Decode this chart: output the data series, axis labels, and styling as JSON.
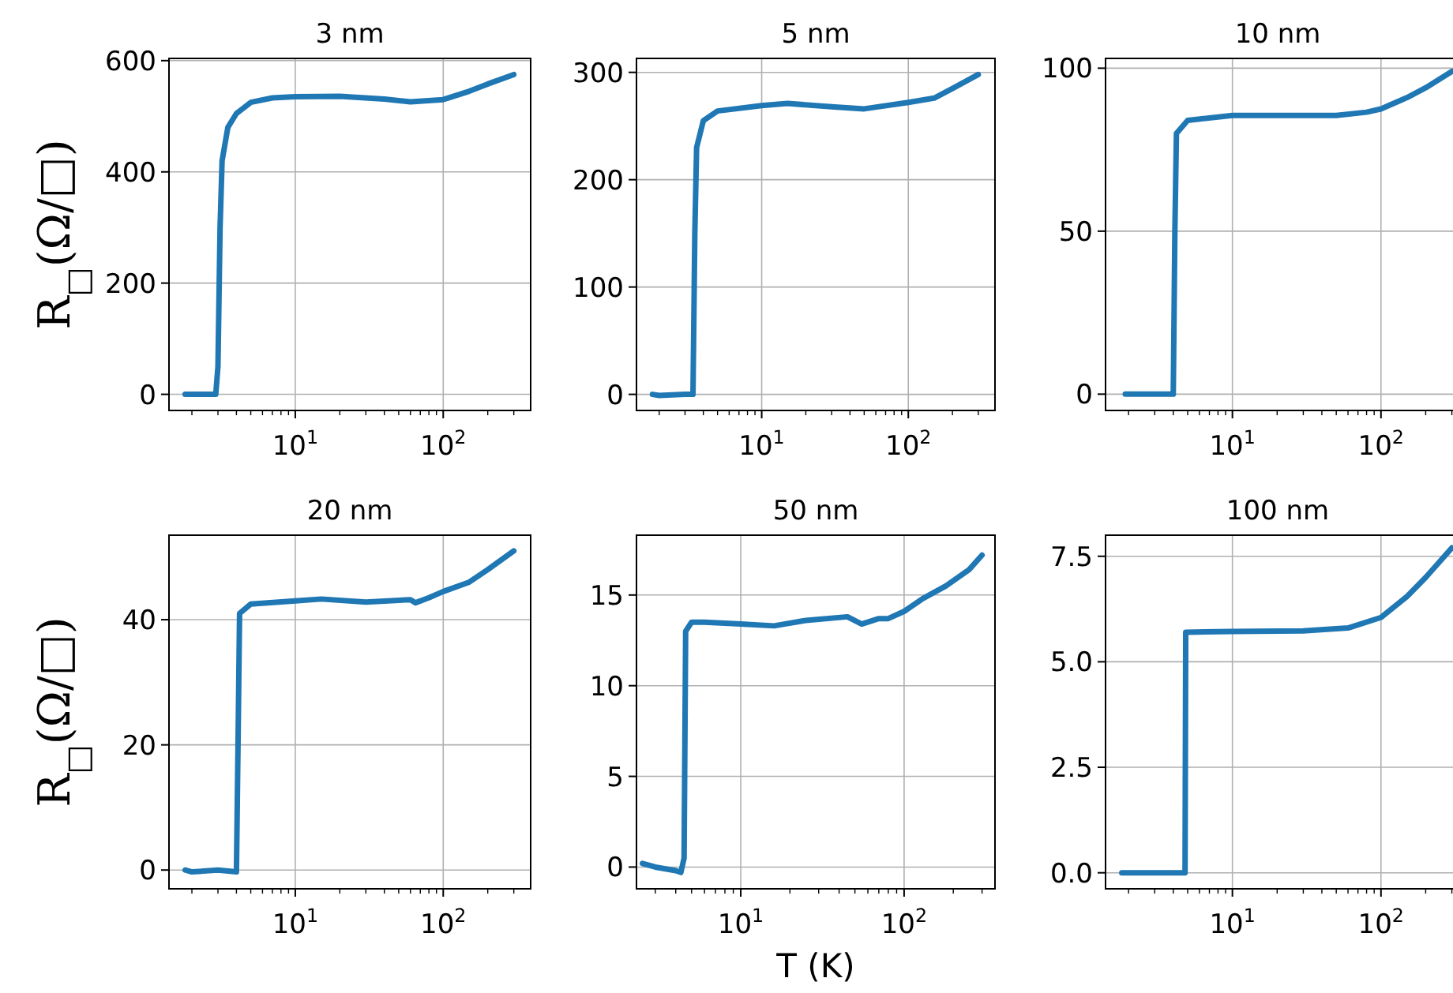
{
  "chart_data": [
    {
      "type": "line",
      "title": "3 nm",
      "ylabel": "R$_{□}$(Ω/□)",
      "log": "x",
      "grid": true,
      "xlim": [
        1.4,
        390
      ],
      "ylim": [
        -29,
        604
      ],
      "yticks": [
        0,
        200,
        400,
        600
      ],
      "xticks": [
        {
          "value": 2,
          "label": null
        },
        {
          "value": 3,
          "label": null
        },
        {
          "value": 4,
          "label": null
        },
        {
          "value": 5,
          "label": null
        },
        {
          "value": 6,
          "label": null
        },
        {
          "value": 7,
          "label": null
        },
        {
          "value": 8,
          "label": null
        },
        {
          "value": 9,
          "label": null
        },
        {
          "value": 10,
          "label": "10$^{1}$"
        },
        {
          "value": 20,
          "label": null
        },
        {
          "value": 30,
          "label": null
        },
        {
          "value": 40,
          "label": null
        },
        {
          "value": 50,
          "label": null
        },
        {
          "value": 60,
          "label": null
        },
        {
          "value": 70,
          "label": null
        },
        {
          "value": 80,
          "label": null
        },
        {
          "value": 90,
          "label": null
        },
        {
          "value": 100,
          "label": "10$^{2}$"
        },
        {
          "value": 200,
          "label": null
        },
        {
          "value": 300,
          "label": null
        }
      ],
      "series": [
        {
          "color": "#1f77b4",
          "x": [
            1.8,
            2.9,
            3.0,
            3.1,
            3.2,
            3.5,
            4,
            5,
            7,
            10,
            20,
            40,
            60,
            100,
            150,
            200,
            300
          ],
          "values": [
            0,
            0,
            50,
            300,
            420,
            480,
            505,
            525,
            533,
            535,
            536,
            531,
            526,
            530,
            545,
            558,
            575
          ]
        }
      ]
    },
    {
      "type": "line",
      "title": "5 nm",
      "log": "x",
      "grid": true,
      "xlim": [
        1.4,
        390
      ],
      "ylim": [
        -15,
        313
      ],
      "yticks": [
        0,
        100,
        200,
        300
      ],
      "xticks": [
        {
          "value": 2,
          "label": null
        },
        {
          "value": 3,
          "label": null
        },
        {
          "value": 4,
          "label": null
        },
        {
          "value": 5,
          "label": null
        },
        {
          "value": 6,
          "label": null
        },
        {
          "value": 7,
          "label": null
        },
        {
          "value": 8,
          "label": null
        },
        {
          "value": 9,
          "label": null
        },
        {
          "value": 10,
          "label": "10$^{1}$"
        },
        {
          "value": 20,
          "label": null
        },
        {
          "value": 30,
          "label": null
        },
        {
          "value": 40,
          "label": null
        },
        {
          "value": 50,
          "label": null
        },
        {
          "value": 60,
          "label": null
        },
        {
          "value": 70,
          "label": null
        },
        {
          "value": 80,
          "label": null
        },
        {
          "value": 90,
          "label": null
        },
        {
          "value": 100,
          "label": "10$^{2}$"
        },
        {
          "value": 200,
          "label": null
        },
        {
          "value": 300,
          "label": null
        }
      ],
      "series": [
        {
          "color": "#1f77b4",
          "x": [
            1.8,
            2,
            3,
            3.4,
            3.5,
            3.6,
            4,
            5,
            10,
            15,
            30,
            50,
            100,
            150,
            200,
            300
          ],
          "values": [
            0,
            -1,
            0,
            0,
            150,
            230,
            255,
            264,
            269,
            271,
            268,
            266,
            272,
            276,
            285,
            298
          ]
        }
      ]
    },
    {
      "type": "line",
      "title": "10 nm",
      "log": "x",
      "grid": true,
      "xlim": [
        1.4,
        390
      ],
      "ylim": [
        -5,
        103
      ],
      "yticks": [
        0,
        50,
        100
      ],
      "xticks": [
        {
          "value": 2,
          "label": null
        },
        {
          "value": 3,
          "label": null
        },
        {
          "value": 4,
          "label": null
        },
        {
          "value": 5,
          "label": null
        },
        {
          "value": 6,
          "label": null
        },
        {
          "value": 7,
          "label": null
        },
        {
          "value": 8,
          "label": null
        },
        {
          "value": 9,
          "label": null
        },
        {
          "value": 10,
          "label": "10$^{1}$"
        },
        {
          "value": 20,
          "label": null
        },
        {
          "value": 30,
          "label": null
        },
        {
          "value": 40,
          "label": null
        },
        {
          "value": 50,
          "label": null
        },
        {
          "value": 60,
          "label": null
        },
        {
          "value": 70,
          "label": null
        },
        {
          "value": 80,
          "label": null
        },
        {
          "value": 90,
          "label": null
        },
        {
          "value": 100,
          "label": "10$^{2}$"
        },
        {
          "value": 200,
          "label": null
        },
        {
          "value": 300,
          "label": null
        }
      ],
      "series": [
        {
          "color": "#1f77b4",
          "x": [
            1.9,
            4,
            4.1,
            4.2,
            5,
            10,
            50,
            80,
            100,
            150,
            200,
            300
          ],
          "values": [
            0,
            0,
            50,
            80,
            84,
            85.5,
            85.5,
            86.5,
            87.5,
            91,
            94,
            99
          ]
        }
      ]
    },
    {
      "type": "line",
      "title": "20 nm",
      "ylabel": "R$_{□}$(Ω/□)",
      "log": "x",
      "grid": true,
      "xlim": [
        1.4,
        390
      ],
      "ylim": [
        -3,
        53.5
      ],
      "yticks": [
        0,
        20,
        40
      ],
      "xticks": [
        {
          "value": 2,
          "label": null
        },
        {
          "value": 3,
          "label": null
        },
        {
          "value": 4,
          "label": null
        },
        {
          "value": 5,
          "label": null
        },
        {
          "value": 6,
          "label": null
        },
        {
          "value": 7,
          "label": null
        },
        {
          "value": 8,
          "label": null
        },
        {
          "value": 9,
          "label": null
        },
        {
          "value": 10,
          "label": "10$^{1}$"
        },
        {
          "value": 20,
          "label": null
        },
        {
          "value": 30,
          "label": null
        },
        {
          "value": 40,
          "label": null
        },
        {
          "value": 50,
          "label": null
        },
        {
          "value": 60,
          "label": null
        },
        {
          "value": 70,
          "label": null
        },
        {
          "value": 80,
          "label": null
        },
        {
          "value": 90,
          "label": null
        },
        {
          "value": 100,
          "label": "10$^{2}$"
        },
        {
          "value": 200,
          "label": null
        },
        {
          "value": 300,
          "label": null
        }
      ],
      "series": [
        {
          "color": "#1f77b4",
          "x": [
            1.8,
            2,
            3,
            4,
            4.1,
            4.2,
            5,
            10,
            15,
            30,
            60,
            65,
            80,
            100,
            150,
            200,
            300
          ],
          "values": [
            0,
            -0.3,
            0,
            -0.3,
            20,
            41,
            42.5,
            43,
            43.3,
            42.8,
            43.2,
            42.7,
            43.5,
            44.5,
            46,
            48,
            51
          ]
        }
      ]
    },
    {
      "type": "line",
      "title": "50 nm",
      "xlabel": "T (K)",
      "log": "x",
      "grid": true,
      "xlim": [
        2.3,
        360
      ],
      "ylim": [
        -1.2,
        18.3
      ],
      "yticks": [
        0,
        5,
        10,
        15
      ],
      "xticks": [
        {
          "value": 3,
          "label": null
        },
        {
          "value": 4,
          "label": null
        },
        {
          "value": 5,
          "label": null
        },
        {
          "value": 6,
          "label": null
        },
        {
          "value": 7,
          "label": null
        },
        {
          "value": 8,
          "label": null
        },
        {
          "value": 9,
          "label": null
        },
        {
          "value": 10,
          "label": "10$^{1}$"
        },
        {
          "value": 20,
          "label": null
        },
        {
          "value": 30,
          "label": null
        },
        {
          "value": 40,
          "label": null
        },
        {
          "value": 50,
          "label": null
        },
        {
          "value": 60,
          "label": null
        },
        {
          "value": 70,
          "label": null
        },
        {
          "value": 80,
          "label": null
        },
        {
          "value": 90,
          "label": null
        },
        {
          "value": 100,
          "label": "10$^{2}$"
        },
        {
          "value": 200,
          "label": null
        },
        {
          "value": 300,
          "label": null
        }
      ],
      "series": [
        {
          "color": "#1f77b4",
          "x": [
            2.5,
            3,
            4,
            4.3,
            4.5,
            4.6,
            5,
            6,
            10,
            16,
            25,
            45,
            55,
            70,
            80,
            100,
            130,
            180,
            250,
            300
          ],
          "values": [
            0.2,
            0,
            -0.2,
            -0.3,
            0.5,
            13,
            13.5,
            13.5,
            13.4,
            13.3,
            13.6,
            13.8,
            13.4,
            13.7,
            13.7,
            14.1,
            14.8,
            15.5,
            16.4,
            17.2
          ]
        }
      ]
    },
    {
      "type": "line",
      "title": "100 nm",
      "log": "x",
      "grid": true,
      "xlim": [
        1.4,
        390
      ],
      "ylim": [
        -0.38,
        8.0
      ],
      "yticks": [
        {
          "value": 0,
          "label": "0.0"
        },
        2.5,
        {
          "value": 5,
          "label": "5.0"
        },
        7.5
      ],
      "xticks": [
        {
          "value": 2,
          "label": null
        },
        {
          "value": 3,
          "label": null
        },
        {
          "value": 4,
          "label": null
        },
        {
          "value": 5,
          "label": null
        },
        {
          "value": 6,
          "label": null
        },
        {
          "value": 7,
          "label": null
        },
        {
          "value": 8,
          "label": null
        },
        {
          "value": 9,
          "label": null
        },
        {
          "value": 10,
          "label": "10$^{1}$"
        },
        {
          "value": 20,
          "label": null
        },
        {
          "value": 30,
          "label": null
        },
        {
          "value": 40,
          "label": null
        },
        {
          "value": 50,
          "label": null
        },
        {
          "value": 60,
          "label": null
        },
        {
          "value": 70,
          "label": null
        },
        {
          "value": 80,
          "label": null
        },
        {
          "value": 90,
          "label": null
        },
        {
          "value": 100,
          "label": "10$^{2}$"
        },
        {
          "value": 200,
          "label": null
        },
        {
          "value": 300,
          "label": null
        }
      ],
      "series": [
        {
          "color": "#1f77b4",
          "x": [
            1.8,
            4.8,
            4.85,
            10,
            30,
            60,
            100,
            150,
            200,
            300
          ],
          "values": [
            0,
            0,
            5.7,
            5.72,
            5.73,
            5.8,
            6.05,
            6.55,
            7.0,
            7.7
          ]
        }
      ]
    }
  ]
}
